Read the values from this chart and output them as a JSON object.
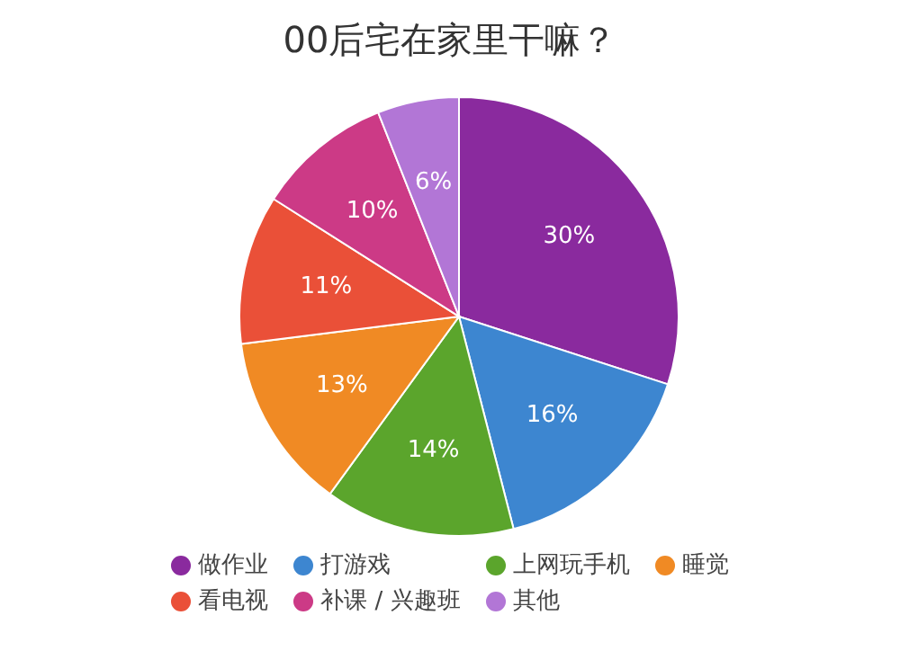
{
  "chart_data": {
    "type": "pie",
    "title": "00后宅在家里干嘛？",
    "categories": [
      "做作业",
      "打游戏",
      "上网玩手机",
      "睡觉",
      "看电视",
      "补课 / 兴趣班",
      "其他"
    ],
    "values": [
      30,
      16,
      14,
      13,
      11,
      10,
      6
    ],
    "value_labels": [
      "30%",
      "16%",
      "14%",
      "13%",
      "11%",
      "10%",
      "6%"
    ],
    "colors": [
      "#8a2a9e",
      "#3d86d0",
      "#5ba52c",
      "#f08a24",
      "#ea5038",
      "#cc3a86",
      "#b276d6"
    ],
    "legend": "bottom"
  }
}
